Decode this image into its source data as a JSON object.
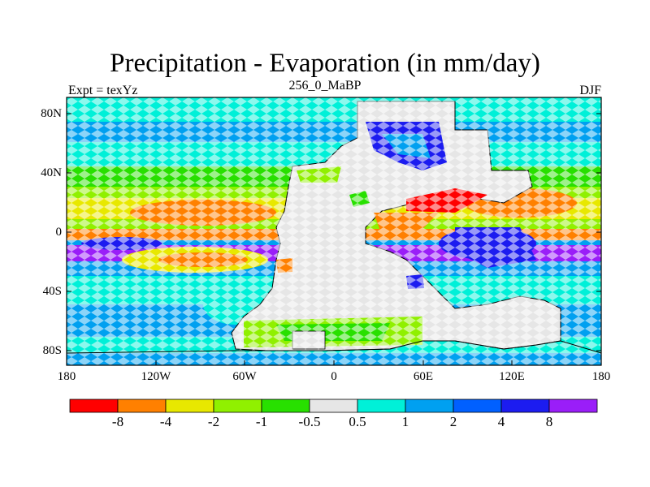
{
  "title": "Precipitation - Evaporation (in mm/day)",
  "subtitle": "256_0_MaBP",
  "left_label": "Expt = texYz",
  "right_label": "DJF",
  "lat_ticks": [
    "80N",
    "40N",
    "0",
    "40S",
    "80S"
  ],
  "lon_ticks": [
    "180",
    "120W",
    "60W",
    "0",
    "60E",
    "120E",
    "180"
  ],
  "colorbar": {
    "colors": [
      "#ff0000",
      "#ff8000",
      "#e8e800",
      "#90f000",
      "#28e000",
      "#e6e6e6",
      "#00f0d8",
      "#00a0f0",
      "#0060ff",
      "#1c1cf0",
      "#9a1ef8"
    ],
    "labels": [
      "-8",
      "-4",
      "-2",
      "-1",
      "-0.5",
      "0.5",
      "1",
      "2",
      "4",
      "8"
    ]
  }
}
